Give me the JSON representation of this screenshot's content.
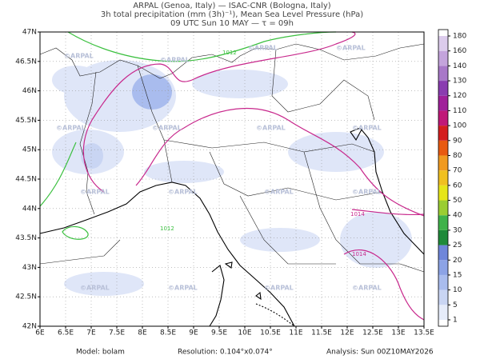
{
  "header": {
    "line1": "ARPAL (Genoa, Italy)  —  ISAC-CNR (Bologna, Italy)",
    "line2": "3h total precipitation (mm (3h)⁻¹), Mean Sea Level Pressure (hPa)",
    "line3": "09 UTC Sun 10 MAY  —  τ = 09h"
  },
  "map": {
    "lon_labels": [
      "6E",
      "6.5E",
      "7E",
      "7.5E",
      "8E",
      "8.5E",
      "9E",
      "9.5E",
      "10E",
      "10.5E",
      "11E",
      "11.5E",
      "12E",
      "12.5E",
      "13E",
      "13.5E"
    ],
    "lat_labels": [
      "47N",
      "46.5N",
      "46N",
      "45.5N",
      "45N",
      "44.5N",
      "44N",
      "43.5N",
      "43N",
      "42.5N",
      "42N"
    ],
    "watermark": "©ARPAL",
    "isobar_labels": [
      "1012",
      "1012",
      "1014",
      "1014"
    ]
  },
  "colorbar": {
    "labels": [
      1,
      5,
      10,
      15,
      20,
      25,
      30,
      40,
      50,
      60,
      70,
      80,
      90,
      100,
      110,
      120,
      130,
      140,
      160,
      180
    ],
    "colors": [
      "#ffffff",
      "#e6ecfa",
      "#c9d5f3",
      "#a9bcee",
      "#8ca3e6",
      "#6f86da",
      "#1f8a3a",
      "#3fb24a",
      "#9acd32",
      "#e6e619",
      "#f0c020",
      "#f09a20",
      "#e85a10",
      "#d41e1e",
      "#c01878",
      "#a0209a",
      "#8a3cb0",
      "#a878c8",
      "#c4a4dc",
      "#dcccec",
      "#ffffff"
    ]
  },
  "footer": {
    "model": "Model: bolam",
    "resolution": "Resolution: 0.104°x0.074°",
    "analysis": "Analysis: Sun 00Z10MAY2026"
  }
}
